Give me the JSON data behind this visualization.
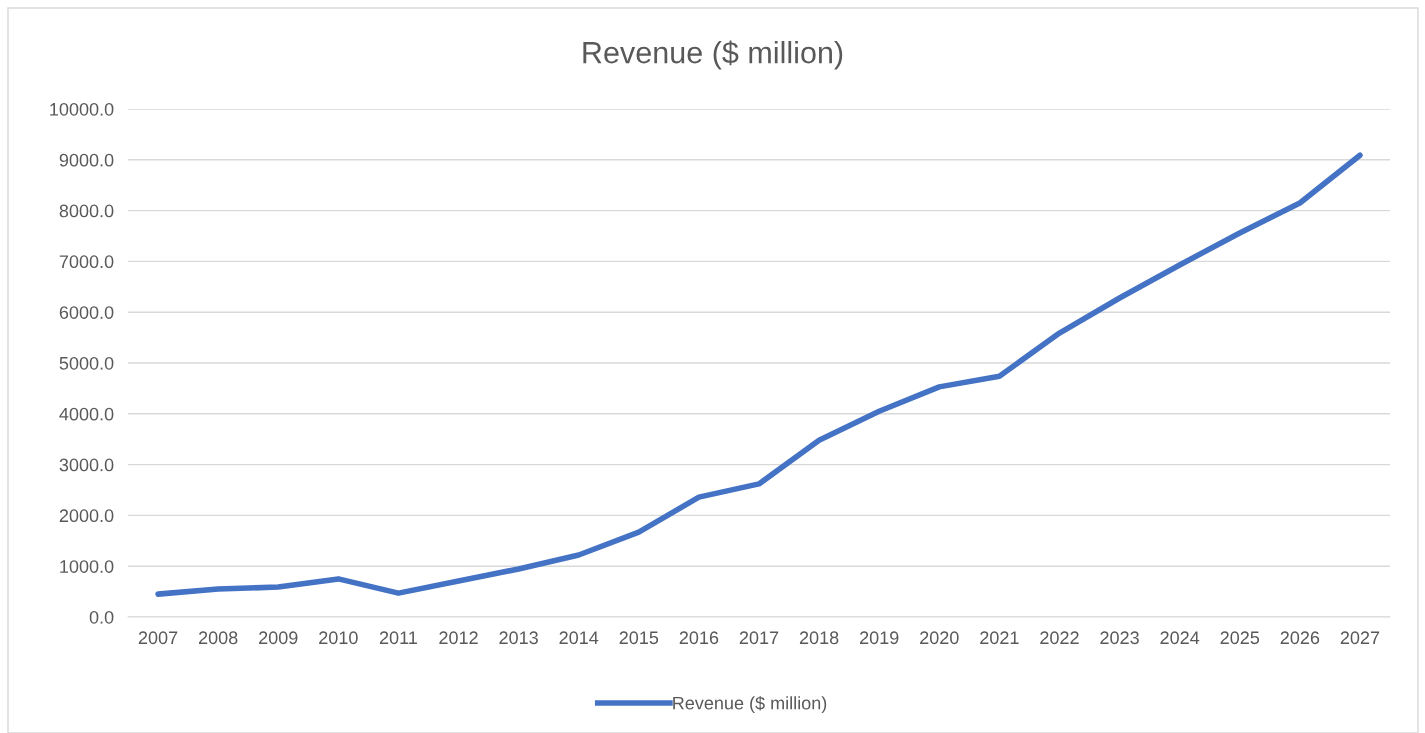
{
  "chart_data": {
    "type": "line",
    "title": "Revenue ($ million)",
    "categories": [
      "2007",
      "2008",
      "2009",
      "2010",
      "2011",
      "2012",
      "2013",
      "2014",
      "2015",
      "2016",
      "2017",
      "2018",
      "2019",
      "2020",
      "2021",
      "2022",
      "2023",
      "2024",
      "2025",
      "2026",
      "2027"
    ],
    "series": [
      {
        "name": "Revenue ($ million)",
        "color": "#4472c4",
        "values": [
          450,
          550,
          590,
          750,
          470,
          710,
          945,
          1220,
          1670,
          2360,
          2620,
          3480,
          4050,
          4530,
          4740,
          5590,
          6280,
          6930,
          7560,
          8150,
          9090
        ]
      }
    ],
    "ylim": [
      0,
      10000
    ],
    "yticks": [
      {
        "value": 0,
        "label": "0.0"
      },
      {
        "value": 1000,
        "label": "1000.0"
      },
      {
        "value": 2000,
        "label": "2000.0"
      },
      {
        "value": 3000,
        "label": "3000.0"
      },
      {
        "value": 4000,
        "label": "4000.0"
      },
      {
        "value": 5000,
        "label": "5000.0"
      },
      {
        "value": 6000,
        "label": "6000.0"
      },
      {
        "value": 7000,
        "label": "7000.0"
      },
      {
        "value": 8000,
        "label": "8000.0"
      },
      {
        "value": 9000,
        "label": "9000.0"
      },
      {
        "value": 10000,
        "label": "10000.0"
      }
    ],
    "grid": "y",
    "legend": "bottom",
    "marker": "none",
    "line_style": "solid"
  }
}
